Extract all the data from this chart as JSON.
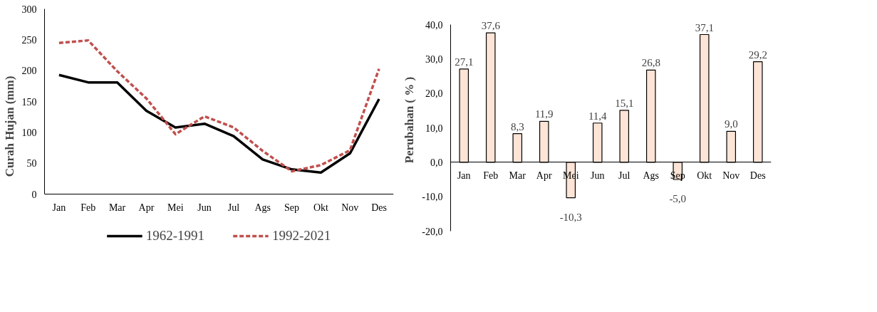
{
  "chart_data": [
    {
      "type": "line",
      "ylabel": "Curah Hujan (mm)",
      "categories": [
        "Jan",
        "Feb",
        "Mar",
        "Apr",
        "Mei",
        "Jun",
        "Jul",
        "Ags",
        "Sep",
        "Okt",
        "Nov",
        "Des"
      ],
      "series": [
        {
          "name": "1962-1991",
          "color": "#000000",
          "line_style": "solid",
          "values": [
            193,
            181,
            181,
            135,
            108,
            114,
            94,
            56,
            40,
            35,
            66,
            154
          ]
        },
        {
          "name": "1992-2021",
          "color": "#c0504d",
          "line_style": "dashed",
          "values": [
            245,
            249,
            199,
            155,
            97,
            126,
            108,
            70,
            37,
            47,
            71,
            203
          ]
        }
      ],
      "ylim": [
        0,
        300
      ],
      "yticks": [
        0,
        50,
        100,
        150,
        200,
        250,
        300
      ],
      "grid": false,
      "legend": "bottom",
      "marker": "none"
    },
    {
      "type": "bar",
      "ylabel": "Perubahan ( % )",
      "categories": [
        "Jan",
        "Feb",
        "Mar",
        "Apr",
        "Mei",
        "Jun",
        "Jul",
        "Ags",
        "Sep",
        "Okt",
        "Nov",
        "Des"
      ],
      "values": [
        27.1,
        37.6,
        8.3,
        11.9,
        -10.3,
        11.4,
        15.1,
        26.8,
        -5.0,
        37.1,
        9.0,
        29.2
      ],
      "value_labels": [
        "27,1",
        "37,6",
        "8,3",
        "11,9",
        "-10,3",
        "11,4",
        "15,1",
        "26,8",
        "-5,0",
        "37,1",
        "9,0",
        "29,2"
      ],
      "color": "#fce4d6",
      "ylim": [
        -20,
        40
      ],
      "yticks": [
        {
          "value": -20,
          "label": "-20,0"
        },
        {
          "value": -10,
          "label": "-10,0"
        },
        {
          "value": 0,
          "label": "0,0"
        },
        {
          "value": 10,
          "label": "10,0"
        },
        {
          "value": 20,
          "label": "20,0"
        },
        {
          "value": 30,
          "label": "30,0"
        },
        {
          "value": 40,
          "label": "40,0"
        }
      ],
      "grid": false,
      "legend": false
    }
  ]
}
